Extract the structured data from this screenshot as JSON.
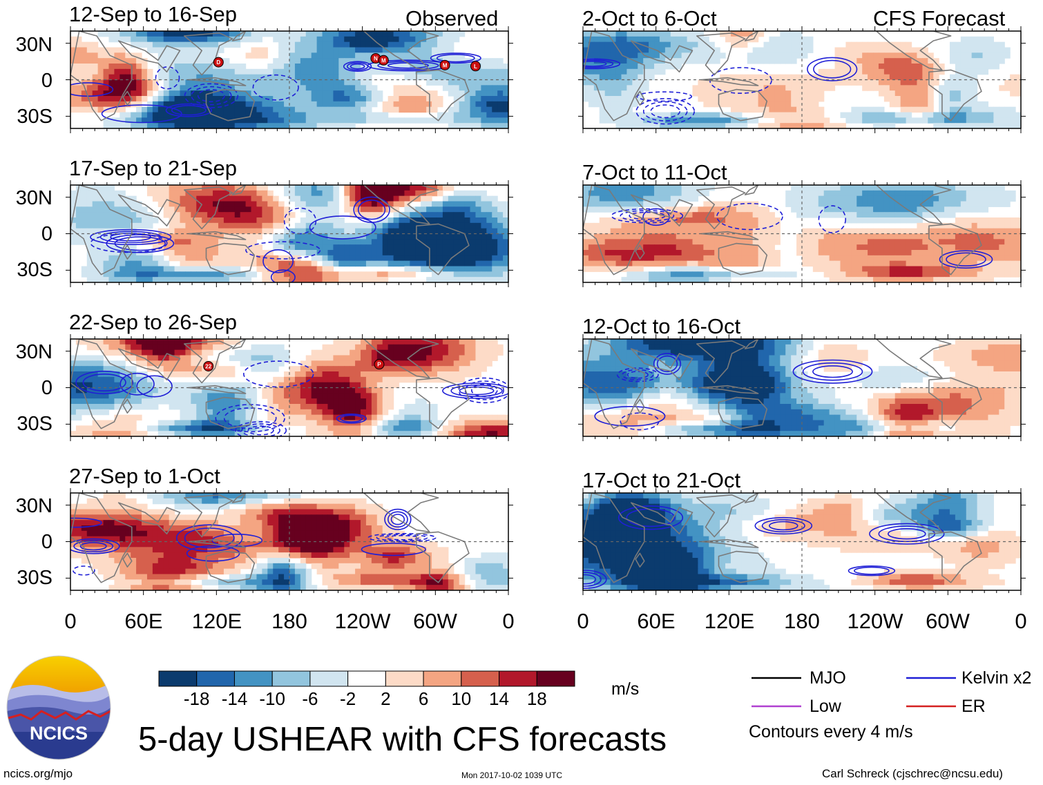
{
  "figure": {
    "title": "5-day USHEAR with CFS forecasts",
    "header_left": "Observed",
    "header_right": "CFS Forecast",
    "units": "m/s",
    "contour_note": "Contours every 4 m/s",
    "url": "ncics.org/mjo",
    "timestamp": "Mon 2017-10-02 1039 UTC",
    "author": "Carl Schreck (cjschrec@ncsu.edu)",
    "logo_text": "NCICS"
  },
  "panels": {
    "observed": [
      {
        "period": "12-Sep to 16-Sep"
      },
      {
        "period": "17-Sep to 21-Sep"
      },
      {
        "period": "22-Sep to 26-Sep"
      },
      {
        "period": "27-Sep to 1-Oct"
      }
    ],
    "forecast": [
      {
        "period": "2-Oct to 6-Oct"
      },
      {
        "period": "7-Oct to 11-Oct"
      },
      {
        "period": "12-Oct to 16-Oct"
      },
      {
        "period": "17-Oct to 21-Oct"
      }
    ]
  },
  "axes": {
    "lat_labels": [
      "30N",
      "0",
      "30S"
    ],
    "lon_labels": [
      "0",
      "60E",
      "120E",
      "180",
      "120W",
      "60W",
      "0"
    ]
  },
  "colorbar": {
    "labels": [
      "-18",
      "-14",
      "-10",
      "-6",
      "-2",
      "2",
      "6",
      "10",
      "14",
      "18"
    ],
    "colors": [
      "#0b3b6e",
      "#2166ac",
      "#4393c3",
      "#92c5de",
      "#d1e5f0",
      "#ffffff",
      "#fddbc7",
      "#f4a582",
      "#d6604d",
      "#b2182b",
      "#67001f"
    ]
  },
  "legend": [
    {
      "label": "MJO",
      "color": "#000000"
    },
    {
      "label": "Kelvin x2",
      "color": "#1f1fd6"
    },
    {
      "label": "Low",
      "color": "#b040d0"
    },
    {
      "label": "ER",
      "color": "#d42020"
    }
  ],
  "storm_markers": [
    {
      "panel": 0,
      "label": "D"
    },
    {
      "panel": 0,
      "label": "N"
    },
    {
      "panel": 0,
      "label": "M"
    },
    {
      "panel": 0,
      "label": "M"
    },
    {
      "panel": 0,
      "label": "L"
    },
    {
      "panel": 2,
      "label": "22"
    },
    {
      "panel": 2,
      "label": "P"
    }
  ]
}
